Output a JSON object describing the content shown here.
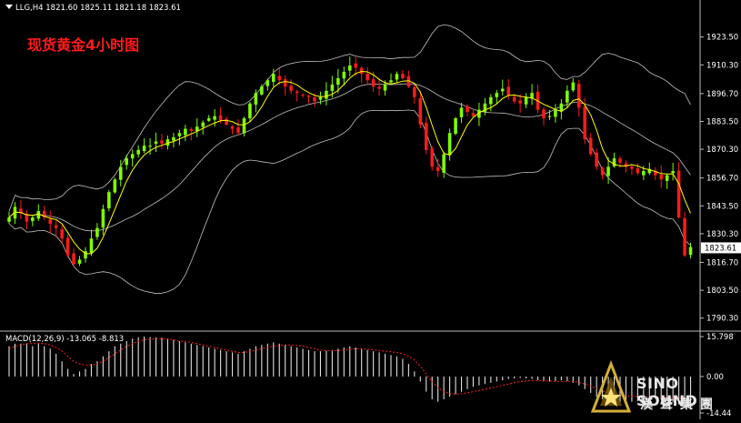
{
  "header": {
    "symbol_line": "LLG,H4  1821.60 1825.11 1821.18 1823.61"
  },
  "overlay_title": "现货黄金4小时图",
  "logo": {
    "name": "SINO SOUND",
    "subtitle": "漢聲集團",
    "icon": "triangle-star-logo-icon"
  },
  "colors": {
    "bull": "#7fff00",
    "bear": "#ff1a1a",
    "ma": "#ffff00",
    "band": "#c0c0c0",
    "macd_hist": "#e0e0e0",
    "macd_signal": "#ff2020",
    "current_price_box": "#ffffff"
  },
  "chart_data": [
    {
      "type": "candlestick",
      "title": "",
      "ylim": [
        1785,
        1935
      ],
      "y_ticks": [
        "1923.50",
        "1910.30",
        "1896.70",
        "1883.50",
        "1870.30",
        "1856.70",
        "1843.50",
        "1830.30",
        "1816.70",
        "1803.50",
        "1790.30"
      ],
      "current_price": "1823.61",
      "overlays": [
        "moving-average",
        "bollinger-bands"
      ],
      "close": [
        1838,
        1843,
        1840,
        1836,
        1838,
        1841,
        1838,
        1835,
        1833,
        1828,
        1820,
        1816,
        1818,
        1822,
        1828,
        1833,
        1842,
        1850,
        1856,
        1862,
        1866,
        1868,
        1870,
        1872,
        1872,
        1874,
        1873,
        1875,
        1876,
        1878,
        1880,
        1879,
        1881,
        1883,
        1885,
        1886,
        1884,
        1882,
        1880,
        1878,
        1885,
        1892,
        1897,
        1900,
        1903,
        1906,
        1903,
        1900,
        1898,
        1897,
        1896,
        1895,
        1893,
        1895,
        1898,
        1901,
        1904,
        1907,
        1910,
        1909,
        1906,
        1903,
        1900,
        1899,
        1901,
        1903,
        1906,
        1904,
        1900,
        1895,
        1882,
        1870,
        1862,
        1860,
        1868,
        1878,
        1885,
        1890,
        1888,
        1886,
        1889,
        1892,
        1895,
        1897,
        1899,
        1896,
        1893,
        1892,
        1895,
        1897,
        1889,
        1885,
        1886,
        1889,
        1892,
        1898,
        1902,
        1890,
        1875,
        1868,
        1862,
        1858,
        1862,
        1866,
        1864,
        1862,
        1861,
        1859,
        1860,
        1861,
        1858,
        1856,
        1858,
        1860,
        1838,
        1820,
        1824
      ],
      "signal_line": [
        11,
        12,
        12.5,
        13,
        13,
        13.2,
        13,
        12.5,
        11.5,
        10,
        8,
        6,
        5,
        4.5,
        4.5,
        5,
        6,
        7.5,
        9,
        10.5,
        12,
        13,
        14,
        14.5,
        14.8,
        15,
        15,
        14.8,
        14.5,
        14,
        13.8,
        13.5,
        13,
        12.5,
        12,
        11.5,
        11,
        10.5,
        10,
        9.5,
        9.5,
        10,
        10.5,
        11,
        11.5,
        12,
        12.3,
        12.5,
        12.5,
        12.3,
        12,
        11.5,
        11,
        10.5,
        10.3,
        10.2,
        10.3,
        10.5,
        10.8,
        11,
        11,
        10.8,
        10.5,
        10.3,
        10,
        9.8,
        9.5,
        9,
        8,
        6.5,
        4,
        1,
        -2,
        -4.5,
        -6,
        -6.8,
        -7,
        -6.8,
        -6.5,
        -6,
        -5.5,
        -5,
        -4.5,
        -4,
        -3.5,
        -3,
        -2.5,
        -2,
        -1.8,
        -1.6,
        -1.6,
        -1.7,
        -1.8,
        -1.9,
        -2,
        -2,
        -2,
        -2.3,
        -3,
        -3.8,
        -4.8,
        -5.8,
        -6.5,
        -7,
        -7.4,
        -7.6,
        -7.8,
        -8,
        -8,
        -8,
        -8.1,
        -8.2,
        -8.3,
        -8.4,
        -8.5,
        -8.7,
        -8.813
      ]
    },
    {
      "type": "bar",
      "title": "MACD(12,26,9) -13.065 -8.813",
      "ylim": [
        -14.44,
        15.798
      ],
      "y_ticks": [
        "15.798",
        "0.00",
        "-14.44"
      ],
      "series": [
        {
          "values": [
            12,
            13,
            13,
            13,
            12,
            13,
            12,
            11,
            9,
            6,
            3,
            1,
            2,
            3,
            5,
            6,
            8,
            10,
            12,
            13,
            14,
            15,
            15.5,
            15.8,
            15.6,
            15.5,
            15.3,
            15,
            14.5,
            14,
            13.5,
            13,
            12.5,
            12,
            11.5,
            11,
            10.5,
            10,
            9.5,
            9,
            10,
            11,
            12,
            12.5,
            13,
            13.5,
            13,
            12.5,
            12,
            11.5,
            11,
            10.5,
            10,
            10,
            10.2,
            10.5,
            11,
            11.5,
            12,
            11.5,
            11,
            10.5,
            10,
            9.5,
            9,
            8.5,
            8,
            7,
            5,
            2,
            -2,
            -6,
            -9,
            -10,
            -9,
            -8,
            -7,
            -6,
            -5,
            -4,
            -3.5,
            -3,
            -2.5,
            -2,
            -1.5,
            -1,
            -0.8,
            -0.6,
            -0.8,
            -1,
            -1.5,
            -2,
            -2,
            -1.8,
            -1.5,
            -1.8,
            -2.5,
            -3.5,
            -5,
            -6.5,
            -8,
            -9,
            -9.5,
            -9.8,
            -10,
            -10,
            -10,
            -9.8,
            -9.5,
            -9,
            -8.8,
            -9,
            -9.5,
            -10,
            -11,
            -12.5,
            -13.065
          ]
        }
      ]
    }
  ]
}
